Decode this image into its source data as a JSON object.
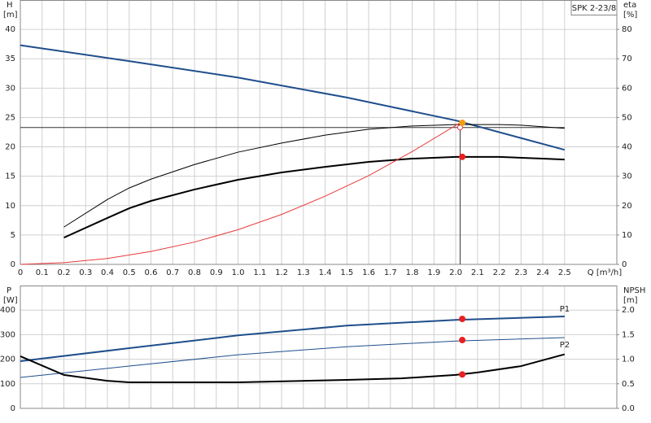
{
  "chart_data": [
    {
      "type": "line",
      "box_label": "SPK 2-23/8",
      "xlabel": "Q [m³/h]",
      "ylabel": "H",
      "yunit": "[m]",
      "y2label": "eta",
      "y2unit": "[%]",
      "xlim": [
        0,
        2.74
      ],
      "xticks": [
        0,
        0.1,
        0.2,
        0.3,
        0.4,
        0.5,
        0.6,
        0.7,
        0.8,
        0.9,
        {
          "value": 1,
          "label": "1.0"
        },
        1.1,
        1.2,
        1.3,
        1.4,
        1.5,
        1.6,
        1.7,
        1.8,
        1.9,
        {
          "value": 2,
          "label": "2.0"
        },
        2.1,
        2.2,
        2.3,
        2.4,
        2.5
      ],
      "ylim": [
        0,
        45
      ],
      "yticks": [
        0,
        5,
        10,
        15,
        20,
        25,
        30,
        35,
        40
      ],
      "y2lim": [
        0,
        90
      ],
      "y2ticks": [
        0,
        10,
        20,
        30,
        40,
        50,
        60,
        70,
        80
      ],
      "grid": true,
      "series": [
        {
          "color": "#1f4e8c",
          "width": 2,
          "x": [
            0,
            0.5,
            1.0,
            1.5,
            2.0,
            2.5
          ],
          "values": [
            37.3,
            34.6,
            31.8,
            28.4,
            24.5,
            19.5
          ]
        },
        {
          "color": "#000000",
          "width": 1,
          "axis": "y2",
          "x": [
            0.2,
            0.4,
            0.5,
            0.6,
            0.8,
            1.0,
            1.2,
            1.4,
            1.6,
            1.8,
            2.0,
            2.2,
            2.3,
            2.5
          ],
          "values": [
            12.7,
            22.1,
            26,
            29,
            34,
            38.2,
            41.3,
            44,
            46,
            47.1,
            47.6,
            47.6,
            47.4,
            46.3
          ]
        },
        {
          "color": "#000000",
          "width": 2,
          "axis": "y2",
          "x": [
            0.2,
            0.4,
            0.5,
            0.6,
            0.8,
            1.0,
            1.2,
            1.4,
            1.6,
            1.8,
            2.0,
            2.2,
            2.4,
            2.5
          ],
          "values": [
            9.1,
            15.8,
            19.1,
            21.6,
            25.5,
            28.8,
            31.3,
            33.2,
            34.9,
            36,
            36.6,
            36.6,
            36,
            35.7
          ]
        },
        {
          "color": "#e83a3a",
          "width": 1,
          "x": [
            0,
            0.2,
            0.4,
            0.6,
            0.8,
            1.0,
            1.2,
            1.4,
            1.6,
            1.8,
            2.02
          ],
          "values": [
            0,
            0.3,
            1,
            2.2,
            3.8,
            5.9,
            8.5,
            11.6,
            15.1,
            19.2,
            24.1
          ]
        }
      ],
      "crosshair": {
        "x": 2.02,
        "y": 23.3,
        "color": "#e83a3a"
      },
      "markers": [
        {
          "x": 2.03,
          "y": 24.1,
          "color": "#f39c12"
        },
        {
          "x": 2.03,
          "y": 36.6,
          "axis": "y2",
          "color": "#e82020"
        }
      ]
    },
    {
      "type": "line",
      "ylabel": "P",
      "yunit": "[W]",
      "y2label": "NPSH",
      "y2unit": "[m]",
      "xlim": [
        0,
        2.74
      ],
      "xticks": [
        0,
        0.1,
        0.2,
        0.3,
        0.4,
        0.5,
        0.6,
        0.7,
        0.8,
        0.9,
        1,
        1.1,
        1.2,
        1.3,
        1.4,
        1.5,
        1.6,
        1.7,
        1.8,
        1.9,
        2,
        2.1,
        2.2,
        2.3,
        2.4,
        2.5
      ],
      "ylim": [
        0,
        500
      ],
      "yticks": [
        0,
        100,
        200,
        300,
        400
      ],
      "y2lim": [
        0,
        2.5
      ],
      "y2ticks": [
        {
          "value": 0,
          "label": "0.0"
        },
        {
          "value": 0.5,
          "label": "0.5"
        },
        {
          "value": 1,
          "label": "1.0"
        },
        {
          "value": 1.5,
          "label": "1.5"
        },
        {
          "value": 2,
          "label": "2.0"
        }
      ],
      "grid": true,
      "series": [
        {
          "name": "P1",
          "color": "#1f4e8c",
          "width": 2,
          "x": [
            0,
            0.5,
            1.0,
            1.5,
            2.0,
            2.5
          ],
          "values": [
            192,
            245,
            297,
            337,
            360,
            374
          ]
        },
        {
          "name": "P2",
          "color": "#1f4e8c",
          "width": 1,
          "x": [
            0,
            0.5,
            1.0,
            1.5,
            2.0,
            2.5
          ],
          "values": [
            126,
            172,
            218,
            251,
            274,
            288
          ]
        },
        {
          "color": "#000000",
          "width": 2,
          "axis": "y2",
          "x": [
            0,
            0.2,
            0.4,
            0.5,
            1.0,
            1.5,
            1.75,
            2.0,
            2.1,
            2.3,
            2.5
          ],
          "values": [
            1.06,
            0.68,
            0.56,
            0.53,
            0.53,
            0.58,
            0.61,
            0.68,
            0.73,
            0.86,
            1.1
          ]
        }
      ],
      "markers": [
        {
          "x": 2.03,
          "y": 364,
          "color": "#e82020"
        },
        {
          "x": 2.03,
          "y": 278,
          "color": "#e82020"
        },
        {
          "x": 2.03,
          "y": 0.69,
          "axis": "y2",
          "color": "#e82020"
        }
      ]
    }
  ]
}
